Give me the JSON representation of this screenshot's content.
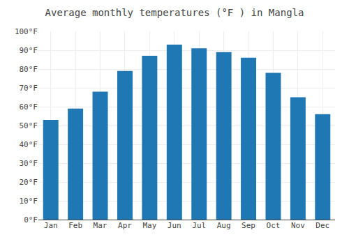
{
  "chart_data": {
    "type": "bar",
    "title": "Average monthly temperatures (°F ) in Mangla",
    "categories": [
      "Jan",
      "Feb",
      "Mar",
      "Apr",
      "May",
      "Jun",
      "Jul",
      "Aug",
      "Sep",
      "Oct",
      "Nov",
      "Dec"
    ],
    "values": [
      53,
      59,
      68,
      79,
      87,
      93,
      91,
      89,
      86,
      78,
      65,
      56
    ],
    "ylim": [
      0,
      100
    ],
    "yticks": [
      {
        "value": 0,
        "label": "0°F"
      },
      {
        "value": 10,
        "label": "10°F"
      },
      {
        "value": 20,
        "label": "20°F"
      },
      {
        "value": 30,
        "label": "30°F"
      },
      {
        "value": 40,
        "label": "40°F"
      },
      {
        "value": 50,
        "label": "50°F"
      },
      {
        "value": 60,
        "label": "60°F"
      },
      {
        "value": 70,
        "label": "70°F"
      },
      {
        "value": 80,
        "label": "80°F"
      },
      {
        "value": 90,
        "label": "90°F"
      },
      {
        "value": 100,
        "label": "100°F"
      }
    ],
    "grid": true
  }
}
